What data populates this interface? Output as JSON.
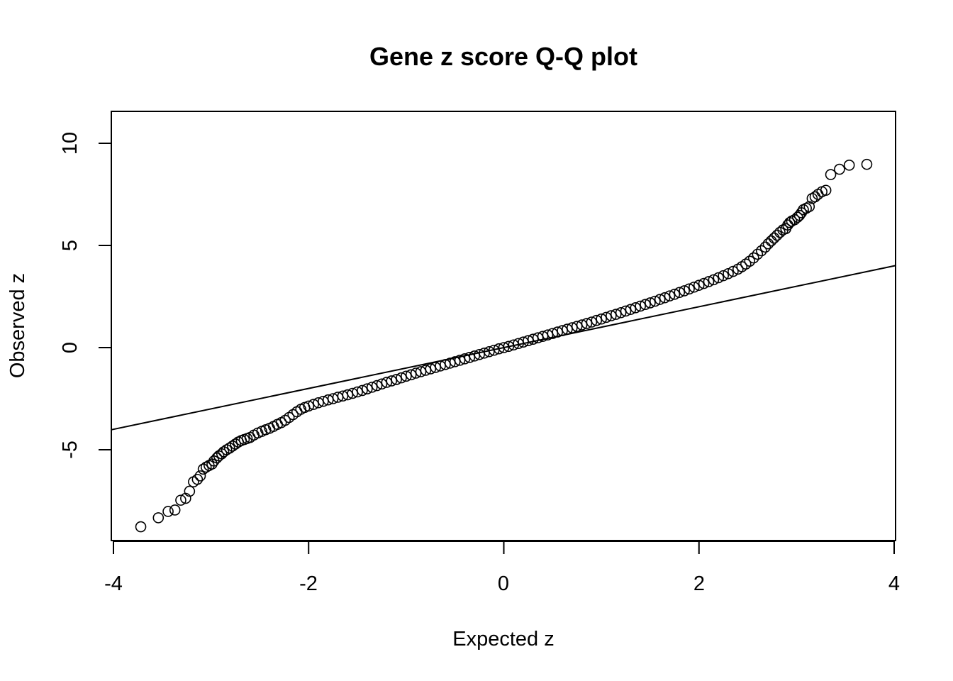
{
  "chart_data": {
    "type": "scatter",
    "title": "Gene z score Q-Q plot",
    "xlabel": "Expected z",
    "ylabel": "Observed z",
    "xlim": [
      -4,
      4
    ],
    "ylim": [
      -9.4,
      11.6
    ],
    "x_ticks": [
      -4,
      -2,
      0,
      2,
      4
    ],
    "y_ticks": [
      -5,
      0,
      5,
      10
    ],
    "x_tick_labels": [
      "-4",
      "-2",
      "0",
      "2",
      "4"
    ],
    "y_tick_labels": [
      "-5",
      "0",
      "5",
      "10"
    ],
    "grid": false,
    "legend": "none",
    "reference_line": {
      "slope": 1,
      "intercept": 0
    },
    "marker_color": "#000000",
    "series": [
      {
        "points": [
          [
            -3.72,
            -8.77
          ],
          [
            -3.54,
            -8.33
          ],
          [
            -3.44,
            -8.02
          ],
          [
            -3.37,
            -7.95
          ],
          [
            -3.31,
            -7.47
          ],
          [
            -3.26,
            -7.38
          ],
          [
            -3.22,
            -7.03
          ],
          [
            -3.18,
            -6.57
          ],
          [
            -3.14,
            -6.45
          ],
          [
            -3.11,
            -6.28
          ],
          [
            -3.08,
            -5.95
          ],
          [
            -3.05,
            -5.85
          ],
          [
            -3.02,
            -5.77
          ],
          [
            -2.99,
            -5.7
          ],
          [
            -2.97,
            -5.55
          ],
          [
            -2.94,
            -5.4
          ],
          [
            -2.92,
            -5.3
          ],
          [
            -2.89,
            -5.2
          ],
          [
            -2.87,
            -5.1
          ],
          [
            -2.84,
            -5.0
          ],
          [
            -2.81,
            -4.92
          ],
          [
            -2.78,
            -4.82
          ],
          [
            -2.75,
            -4.72
          ],
          [
            -2.72,
            -4.62
          ],
          [
            -2.69,
            -4.55
          ],
          [
            -2.66,
            -4.5
          ],
          [
            -2.63,
            -4.45
          ],
          [
            -2.6,
            -4.4
          ],
          [
            -2.56,
            -4.28
          ],
          [
            -2.52,
            -4.18
          ],
          [
            -2.48,
            -4.1
          ],
          [
            -2.44,
            -4.02
          ],
          [
            -2.4,
            -3.95
          ],
          [
            -2.36,
            -3.86
          ],
          [
            -2.32,
            -3.76
          ],
          [
            -2.28,
            -3.67
          ],
          [
            -2.24,
            -3.56
          ],
          [
            -2.2,
            -3.42
          ],
          [
            -2.16,
            -3.28
          ],
          [
            -2.12,
            -3.14
          ],
          [
            -2.08,
            -3.02
          ],
          [
            -2.04,
            -2.93
          ],
          [
            -2.0,
            -2.86
          ],
          [
            -1.95,
            -2.78
          ],
          [
            -1.9,
            -2.7
          ],
          [
            -1.85,
            -2.63
          ],
          [
            -1.8,
            -2.56
          ],
          [
            -1.75,
            -2.5
          ],
          [
            -1.7,
            -2.43
          ],
          [
            -1.65,
            -2.37
          ],
          [
            -1.6,
            -2.31
          ],
          [
            -1.55,
            -2.24
          ],
          [
            -1.5,
            -2.17
          ],
          [
            -1.45,
            -2.1
          ],
          [
            -1.4,
            -2.02
          ],
          [
            -1.35,
            -1.94
          ],
          [
            -1.3,
            -1.86
          ],
          [
            -1.25,
            -1.78
          ],
          [
            -1.2,
            -1.7
          ],
          [
            -1.15,
            -1.63
          ],
          [
            -1.1,
            -1.56
          ],
          [
            -1.05,
            -1.48
          ],
          [
            -1.0,
            -1.4
          ],
          [
            -0.95,
            -1.33
          ],
          [
            -0.9,
            -1.25
          ],
          [
            -0.85,
            -1.18
          ],
          [
            -0.8,
            -1.11
          ],
          [
            -0.75,
            -1.04
          ],
          [
            -0.7,
            -0.97
          ],
          [
            -0.65,
            -0.9
          ],
          [
            -0.6,
            -0.83
          ],
          [
            -0.55,
            -0.76
          ],
          [
            -0.5,
            -0.69
          ],
          [
            -0.45,
            -0.62
          ],
          [
            -0.4,
            -0.55
          ],
          [
            -0.35,
            -0.48
          ],
          [
            -0.3,
            -0.41
          ],
          [
            -0.25,
            -0.34
          ],
          [
            -0.2,
            -0.27
          ],
          [
            -0.15,
            -0.2
          ],
          [
            -0.1,
            -0.13
          ],
          [
            -0.05,
            -0.06
          ],
          [
            0.0,
            0.0
          ],
          [
            0.05,
            0.06
          ],
          [
            0.1,
            0.13
          ],
          [
            0.15,
            0.2
          ],
          [
            0.2,
            0.27
          ],
          [
            0.25,
            0.34
          ],
          [
            0.3,
            0.41
          ],
          [
            0.35,
            0.48
          ],
          [
            0.4,
            0.55
          ],
          [
            0.45,
            0.62
          ],
          [
            0.5,
            0.69
          ],
          [
            0.55,
            0.76
          ],
          [
            0.6,
            0.83
          ],
          [
            0.65,
            0.9
          ],
          [
            0.7,
            0.97
          ],
          [
            0.75,
            1.04
          ],
          [
            0.8,
            1.11
          ],
          [
            0.85,
            1.18
          ],
          [
            0.9,
            1.25
          ],
          [
            0.95,
            1.33
          ],
          [
            1.0,
            1.4
          ],
          [
            1.05,
            1.48
          ],
          [
            1.1,
            1.56
          ],
          [
            1.15,
            1.63
          ],
          [
            1.2,
            1.71
          ],
          [
            1.25,
            1.79
          ],
          [
            1.3,
            1.87
          ],
          [
            1.35,
            1.95
          ],
          [
            1.4,
            2.03
          ],
          [
            1.45,
            2.11
          ],
          [
            1.5,
            2.19
          ],
          [
            1.55,
            2.27
          ],
          [
            1.6,
            2.36
          ],
          [
            1.65,
            2.44
          ],
          [
            1.7,
            2.53
          ],
          [
            1.75,
            2.61
          ],
          [
            1.8,
            2.7
          ],
          [
            1.85,
            2.78
          ],
          [
            1.9,
            2.87
          ],
          [
            1.95,
            2.96
          ],
          [
            2.0,
            3.05
          ],
          [
            2.05,
            3.14
          ],
          [
            2.1,
            3.23
          ],
          [
            2.15,
            3.32
          ],
          [
            2.2,
            3.42
          ],
          [
            2.25,
            3.52
          ],
          [
            2.3,
            3.62
          ],
          [
            2.35,
            3.73
          ],
          [
            2.4,
            3.84
          ],
          [
            2.44,
            3.96
          ],
          [
            2.48,
            4.09
          ],
          [
            2.52,
            4.23
          ],
          [
            2.56,
            4.39
          ],
          [
            2.6,
            4.57
          ],
          [
            2.64,
            4.74
          ],
          [
            2.68,
            4.92
          ],
          [
            2.71,
            5.08
          ],
          [
            2.74,
            5.22
          ],
          [
            2.77,
            5.36
          ],
          [
            2.8,
            5.5
          ],
          [
            2.83,
            5.64
          ],
          [
            2.86,
            5.76
          ],
          [
            2.89,
            5.82
          ],
          [
            2.91,
            6.0
          ],
          [
            2.93,
            6.12
          ],
          [
            2.95,
            6.19
          ],
          [
            2.98,
            6.26
          ],
          [
            3.01,
            6.38
          ],
          [
            3.03,
            6.47
          ],
          [
            3.05,
            6.6
          ],
          [
            3.07,
            6.75
          ],
          [
            3.1,
            6.82
          ],
          [
            3.13,
            6.9
          ],
          [
            3.16,
            7.3
          ],
          [
            3.19,
            7.38
          ],
          [
            3.22,
            7.5
          ],
          [
            3.26,
            7.63
          ],
          [
            3.3,
            7.7
          ],
          [
            3.35,
            8.47
          ],
          [
            3.44,
            8.73
          ],
          [
            3.54,
            8.93
          ],
          [
            3.72,
            8.97
          ]
        ]
      }
    ]
  }
}
